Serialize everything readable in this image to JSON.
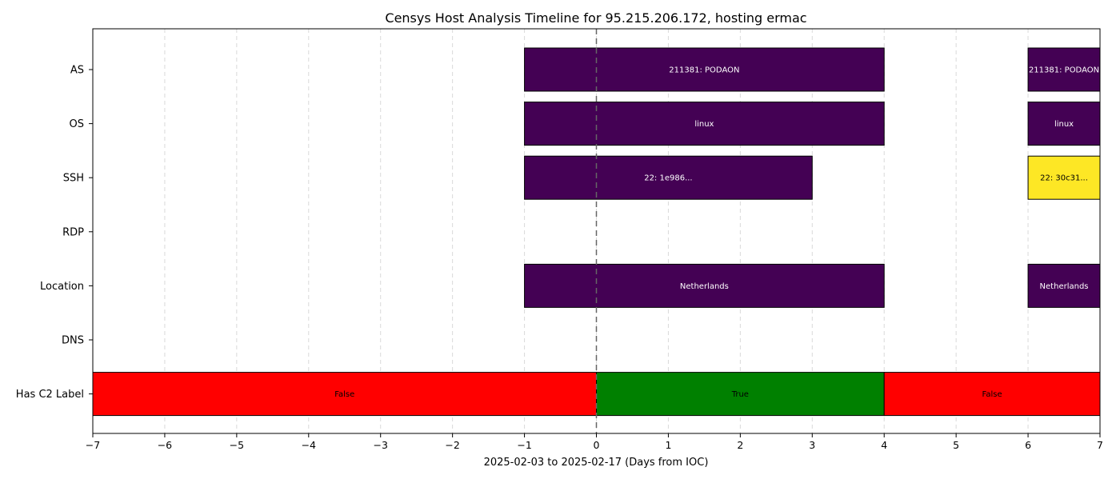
{
  "chart_data": {
    "type": "bar",
    "orientation": "horizontal-timeline",
    "title": "Censys Host Analysis Timeline for 95.215.206.172, hosting ermac",
    "xlabel": "2025-02-03 to 2025-02-17 (Days from IOC)",
    "ylabel": "",
    "xlim": [
      -7,
      7
    ],
    "xticks": [
      -7,
      -6,
      -5,
      -4,
      -3,
      -2,
      -1,
      0,
      1,
      2,
      3,
      4,
      5,
      6,
      7
    ],
    "grid": "vertical-dashed",
    "reference_line_x": 0,
    "categories": [
      "AS",
      "OS",
      "SSH",
      "RDP",
      "Location",
      "DNS",
      "Has C2 Label"
    ],
    "segments": [
      {
        "category": "AS",
        "start": -1,
        "end": 4,
        "label": "211381: PODAON",
        "color": "#440154"
      },
      {
        "category": "AS",
        "start": 6,
        "end": 7,
        "label": "211381: PODAON",
        "color": "#440154"
      },
      {
        "category": "OS",
        "start": -1,
        "end": 4,
        "label": "linux",
        "color": "#440154"
      },
      {
        "category": "OS",
        "start": 6,
        "end": 7,
        "label": "linux",
        "color": "#440154"
      },
      {
        "category": "SSH",
        "start": -1,
        "end": 3,
        "label": "22: 1e986...",
        "color": "#440154"
      },
      {
        "category": "SSH",
        "start": 6,
        "end": 7,
        "label": "22: 30c31...",
        "color": "#fde725"
      },
      {
        "category": "Location",
        "start": -1,
        "end": 4,
        "label": "Netherlands",
        "color": "#440154"
      },
      {
        "category": "Location",
        "start": 6,
        "end": 7,
        "label": "Netherlands",
        "color": "#440154"
      },
      {
        "category": "Has C2 Label",
        "start": -7,
        "end": 0,
        "label": "False",
        "color": "#ff0000"
      },
      {
        "category": "Has C2 Label",
        "start": 0,
        "end": 4,
        "label": "True",
        "color": "#008000"
      },
      {
        "category": "Has C2 Label",
        "start": 4,
        "end": 7,
        "label": "False",
        "color": "#ff0000"
      }
    ]
  }
}
